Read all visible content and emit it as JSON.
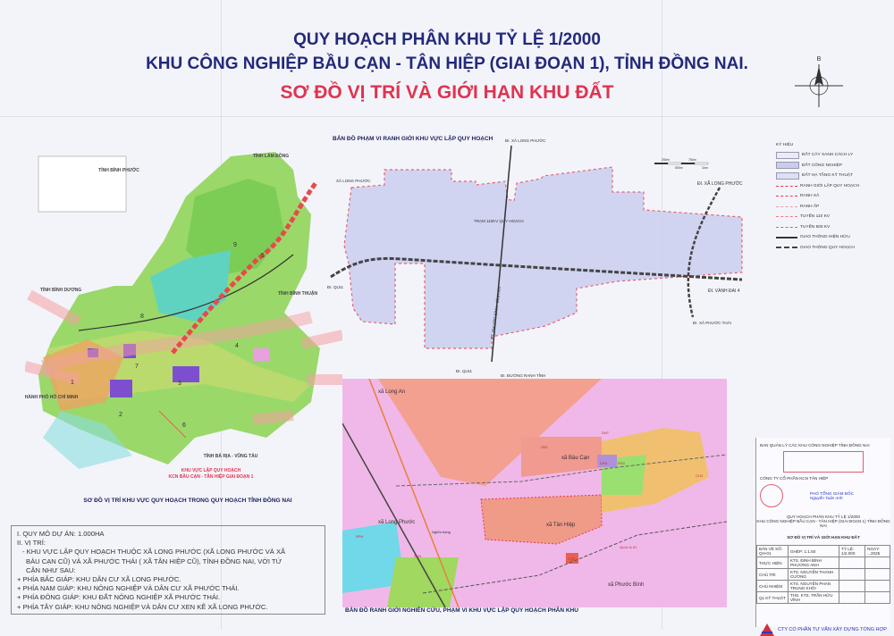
{
  "title": {
    "line1": "QUY HOẠCH PHÂN KHU TỶ LỆ 1/2000",
    "line2": "KHU CÔNG NGHIỆP BẦU CẠN - TÂN HIỆP (GIAI ĐOẠN 1), TỈNH ĐỒNG NAI.",
    "line3": "SƠ ĐỒ VỊ TRÍ VÀ GIỚI HẠN KHU ĐẤT"
  },
  "compass": {
    "north_label": "B"
  },
  "province_map": {
    "caption": "SƠ ĐỒ VỊ TRÍ KHU VỰC QUY HOẠCH TRONG QUY HOẠCH TỈNH ĐỒNG NAI",
    "labels": {
      "binh_phuoc": "TỈNH BÌNH PHƯỚC",
      "lam_dong": "TỈNH LÂM ĐỒNG",
      "binh_duong": "TỈNH BÌNH DƯƠNG",
      "binh_thuan": "TỈNH BÌNH THUẬN",
      "hcm": "THÀNH PHỐ HỒ CHÍ MINH",
      "brvt": "TỈNH BÀ RỊA - VŨNG TÀU",
      "project_1": "KHU VỰC LẬP QUY HOẠCH",
      "project_2": "KCN BẦU CẠN - TÂN HIỆP GIAI ĐOẠN 1"
    },
    "zones": [
      "1",
      "2",
      "3",
      "4",
      "5",
      "6",
      "7",
      "8",
      "9"
    ],
    "colors": {
      "forest": "#9ad86a",
      "teal": "#5fd3c0",
      "industrial": "#7d4fd0",
      "urban": "#f0a060",
      "corridor": "#f4a0a0",
      "expressway": "#e84a4a"
    }
  },
  "boundary_map": {
    "title": "BẢN ĐỒ PHẠM VI RANH GIỚI KHU VỰC LẬP QUY HOẠCH",
    "labels": {
      "to_long_phuoc_n": "ĐI. XÃ LONG PHƯỚC",
      "xa_long_phuoc": "XÃ LONG PHƯỚC",
      "tram": "TRẠM 110KV QUY HOẠCH",
      "to_ql51_w": "ĐI. QL51",
      "to_ql51_s": "ĐI. QL51",
      "duong_ranh_tinh": "ĐI. ĐƯỜNG RANH TỈNH",
      "road_name": "ĐT. PHƯỚC BÌNH - BÌNH AN",
      "to_long_phuoc_e": "ĐI. XÃ LONG PHƯỚC",
      "vanh_dai": "ĐI. VÀNH ĐAI 4",
      "to_phuoc_thai": "ĐI. XÃ PHƯỚC THÁI"
    },
    "scale": [
      "250m",
      "500m",
      "750m",
      "1km"
    ]
  },
  "legend": {
    "title": "KÝ HIỆU",
    "items": [
      {
        "label": "ĐẤT CÂY XANH CÁCH LY",
        "color": "#e8ecf8"
      },
      {
        "label": "ĐẤT CÔNG NGHIỆP",
        "color": "#c8cdf0"
      },
      {
        "label": "ĐẤT HẠ TẦNG KỸ THUẬT",
        "color": "#dde0f5"
      },
      {
        "label": "RANH GIỚI LẬP QUY HOẠCH",
        "color": "#e33b4f"
      },
      {
        "label": "RANH XÃ",
        "color": "#e33b4f"
      },
      {
        "label": "RANH ẤP",
        "color": "#e8a0a8"
      },
      {
        "label": "TUYẾN 110 KV",
        "color": "#e87a8a"
      },
      {
        "label": "TUYẾN 500 KV",
        "color": "#e85a6a"
      },
      {
        "label": "GIAO THÔNG HIỆN HỮU",
        "color": "#333333"
      },
      {
        "label": "GIAO THÔNG QUY HOẠCH",
        "color": "#444444"
      }
    ]
  },
  "study_map": {
    "caption": "BẢN ĐỒ RANH GIỚI NGHIÊN CỨU, PHẠM VI KHU VỰC LẬP QUY HOẠCH PHÂN KHU",
    "labels": {
      "long_an": "xã Long An",
      "bau_can": "xã Bàu Cạn",
      "long_phuoc": "xã Long Phước",
      "tan_hiep": "xã Tân Hiệp",
      "phuoc_binh": "xã Phước Bình",
      "skk": "SKK",
      "dra": "DRA",
      "rsx": "RSX",
      "cln": "CLN",
      "dnt": "DNT",
      "cqp": "CQP",
      "skn": "SKN",
      "rph": "RPH",
      "nghia_trang": "Nghĩa trang",
      "quoc_lo": "Quốc lộ 51"
    }
  },
  "info": {
    "scale": "I. QUY MÔ DỰ ÁN: 1.000HA",
    "location_heading": "II. VỊ TRÍ:",
    "location_desc_1": "- KHU VỰC LẬP QUY HOẠCH THUỘC XÃ LONG PHƯỚC (XÃ LONG PHƯỚC VÀ XÃ",
    "location_desc_2": "BÀU CẠN CŨ) VÀ XÃ PHƯỚC THÁI ( XÃ TÂN HIỆP CŨ), TỈNH ĐỒNG NAI, VỚI TỨ",
    "location_desc_3": "CẬN NHƯ SAU:",
    "north": "+ PHÍA BẮC GIÁP: KHU DÂN CƯ XÃ LONG PHƯỚC.",
    "south": "+ PHÍA NAM GIÁP: KHU NÔNG NGHIỆP VÀ DÂN CƯ XÃ PHƯỚC THÁI.",
    "east": "+ PHÍA ĐÔNG GIÁP: KHU ĐẤT NÔNG NGHIỆP XÃ PHƯỚC THÁI.",
    "west": "+ PHÍA TÂY GIÁP: KHU NÔNG NGHIỆP VÀ DÂN CƯ XEN KẼ XÃ LONG PHƯỚC."
  },
  "title_block": {
    "authority": "BAN QUẢN LÝ CÁC KHU CÔNG NGHIỆP TỈNH ĐỒNG NAI",
    "investor": "CÔNG TY CỔ PHẦN KCN TÂN HIỆP",
    "signer_role": "PHÓ TỔNG GIÁM ĐỐC",
    "signer_name": "Nguyễn Tuấn Anh",
    "project_1": "QUY HOẠCH PHÂN KHU TỶ LỆ 1/2000",
    "project_2": "KHU CÔNG NGHIỆP BẦU CẠN - TÂN HIỆP (GIAI ĐOẠN 1) TỈNH ĐỒNG NAI",
    "drawing": "SƠ ĐỒ VỊ TRÍ VÀ GIỚI HẠN KHU ĐẤT",
    "rows": [
      [
        "BẢN VẼ SỐ: QH-01",
        "GHÉP: 1:1.60",
        "TỶ LỆ: 1/2.000",
        "NGÀY: ...2025"
      ],
      [
        "THỰC HIỆN",
        "KTS. ĐINH BÌNH PHƯƠNG ANH",
        "",
        ""
      ],
      [
        "CHỦ TRÌ",
        "KTS. NGUYỄN THANH CƯỜNG",
        "",
        ""
      ],
      [
        "CHỦ NHIỆM",
        "KTS. NGUYỄN PHAN TRUNG KHÔI",
        "",
        ""
      ],
      [
        "QL KỸ THUẬT",
        "THS. KTS. TRẦN HỮU VĨNH",
        "",
        ""
      ]
    ],
    "company": "CTY CỔ PHẦN TƯ VẤN XÂY DỰNG TỔNG HỢP"
  }
}
